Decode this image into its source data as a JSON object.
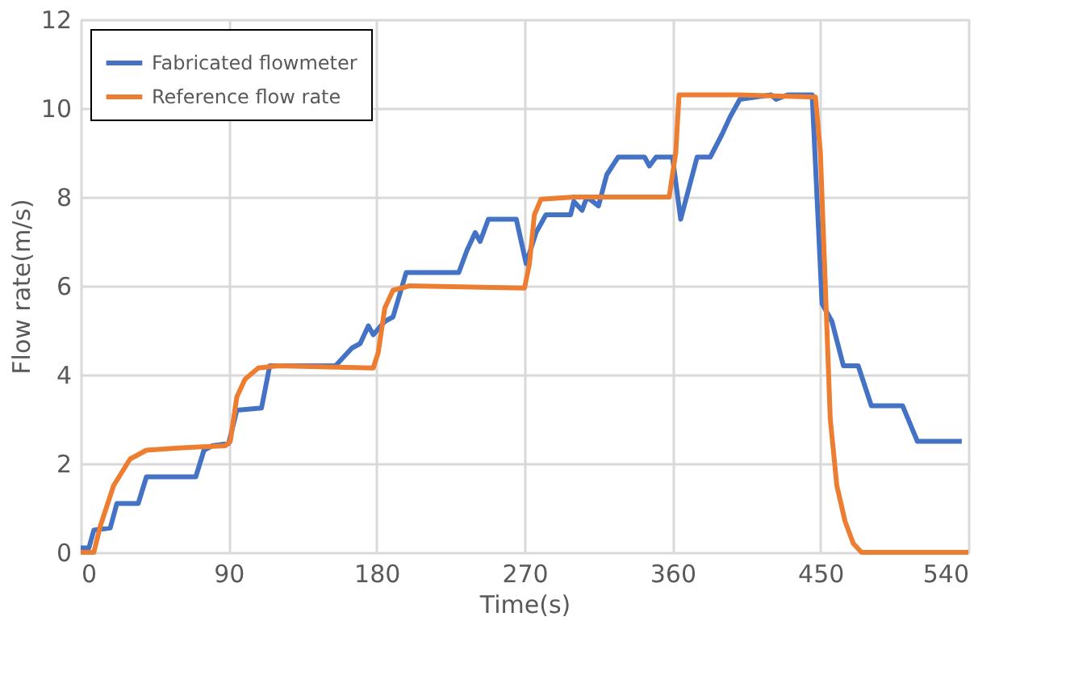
{
  "chart_data": {
    "type": "line",
    "xlabel": "Time(s)",
    "ylabel": "Flow rate(m/s)",
    "xlim": [
      0,
      540
    ],
    "xticks": [
      0,
      90,
      180,
      270,
      360,
      450,
      540
    ],
    "ylim": [
      0,
      12
    ],
    "yticks": [
      0,
      2,
      4,
      6,
      8,
      10,
      12
    ],
    "grid": true,
    "legend": "top left",
    "marker": "none",
    "line_style": "solid",
    "series": [
      {
        "name": "Fabricated flowmeter",
        "color": "#4472c4",
        "x": [
          0,
          5,
          8,
          18,
          22,
          35,
          40,
          70,
          75,
          80,
          90,
          95,
          110,
          115,
          155,
          165,
          170,
          175,
          178,
          185,
          190,
          198,
          230,
          235,
          240,
          243,
          248,
          260,
          265,
          271,
          277,
          283,
          298,
          300,
          305,
          308,
          315,
          320,
          327,
          343,
          346,
          350,
          360,
          365,
          370,
          375,
          383,
          390,
          395,
          401,
          420,
          423,
          430,
          445,
          451,
          457,
          464,
          473,
          481,
          500,
          509,
          536
        ],
        "values": [
          0.1,
          0.1,
          0.5,
          0.55,
          1.1,
          1.1,
          1.7,
          1.7,
          2.3,
          2.4,
          2.45,
          3.2,
          3.25,
          4.2,
          4.2,
          4.6,
          4.7,
          5.1,
          4.9,
          5.2,
          5.3,
          6.3,
          6.3,
          6.8,
          7.2,
          7.0,
          7.5,
          7.5,
          7.5,
          6.5,
          7.2,
          7.6,
          7.6,
          7.9,
          7.7,
          8.0,
          7.8,
          8.5,
          8.9,
          8.9,
          8.7,
          8.9,
          8.9,
          7.5,
          8.2,
          8.9,
          8.9,
          9.4,
          9.8,
          10.2,
          10.3,
          10.2,
          10.3,
          10.3,
          5.6,
          5.2,
          4.2,
          4.2,
          3.3,
          3.3,
          2.5,
          2.5
        ]
      },
      {
        "name": "Reference flow rate",
        "color": "#ed7d31",
        "x": [
          0,
          8,
          12,
          20,
          30,
          40,
          60,
          88,
          91,
          95,
          100,
          108,
          120,
          178,
          181,
          185,
          190,
          200,
          270,
          273,
          276,
          280,
          300,
          358,
          362,
          364,
          400,
          447,
          450,
          453,
          456,
          460,
          465,
          470,
          475,
          540
        ],
        "values": [
          0,
          0,
          0.6,
          1.5,
          2.1,
          2.3,
          2.35,
          2.4,
          2.5,
          3.5,
          3.9,
          4.15,
          4.2,
          4.15,
          4.5,
          5.5,
          5.9,
          6.0,
          5.95,
          6.5,
          7.6,
          7.95,
          8.0,
          8.0,
          9.0,
          10.3,
          10.3,
          10.25,
          9.0,
          6.0,
          3.0,
          1.5,
          0.7,
          0.2,
          0,
          0
        ]
      }
    ]
  }
}
